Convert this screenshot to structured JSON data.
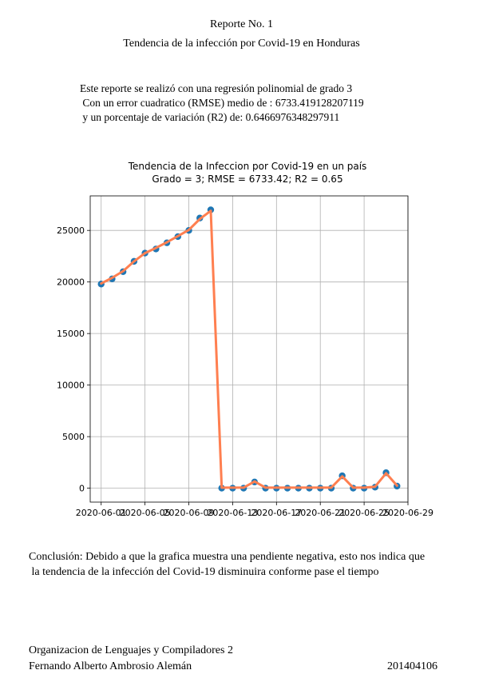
{
  "report": {
    "title": "Reporte No. 1",
    "subtitle": "Tendencia de la infección por Covid-19 en Honduras",
    "summary_lines": [
      "Este reporte se realizó con una regresión polinomial de grado 3",
      " Con un error cuadratico (RMSE) medio de : 6733.419128207119",
      " y un porcentaje de variación (R2) de: 0.6466976348297911"
    ],
    "conclusion_lines": [
      "Conclusión: Debido a que la grafica muestra una pendiente negativa, esto nos indica que",
      " la tendencia de la infección del Covid-19 disminuira conforme pase el tiempo"
    ],
    "footer": {
      "course": "Organizacion de Lenguajes y Compiladores 2",
      "author": "Fernando Alberto Ambrosio Alemán",
      "carnet": "201404106"
    }
  },
  "chart_data": {
    "type": "line",
    "title": "Tendencia de la Infeccion por Covid-19 en un país",
    "subtitle": "Grado = 3; RMSE = 6733.42; R2 = 0.65",
    "xlabel": "",
    "ylabel": "",
    "x_ticks": [
      "2020-06-01",
      "2020-06-05",
      "2020-06-09",
      "2020-06-13",
      "2020-06-17",
      "2020-06-21",
      "2020-06-25",
      "2020-06-29"
    ],
    "x_range": [
      "2020-05-31",
      "2020-06-29"
    ],
    "y_ticks": [
      0,
      5000,
      10000,
      15000,
      20000,
      25000
    ],
    "ylim": [
      -1350,
      28350
    ],
    "grid": true,
    "colors": {
      "points": "#1f77b4",
      "fit": "#ff7f50"
    },
    "series": [
      {
        "kind": "points",
        "x": [
          "2020-06-01",
          "2020-06-02",
          "2020-06-03",
          "2020-06-04",
          "2020-06-05",
          "2020-06-06",
          "2020-06-07",
          "2020-06-08",
          "2020-06-09",
          "2020-06-10",
          "2020-06-11",
          "2020-06-12",
          "2020-06-13",
          "2020-06-14",
          "2020-06-15",
          "2020-06-16",
          "2020-06-17",
          "2020-06-18",
          "2020-06-19",
          "2020-06-20",
          "2020-06-21",
          "2020-06-22",
          "2020-06-23",
          "2020-06-24",
          "2020-06-25",
          "2020-06-26",
          "2020-06-27",
          "2020-06-28"
        ],
        "y": [
          19800,
          20300,
          21000,
          22000,
          22800,
          23200,
          23800,
          24400,
          25000,
          26200,
          27000,
          0,
          0,
          0,
          600,
          0,
          0,
          0,
          0,
          0,
          0,
          0,
          1200,
          0,
          0,
          100,
          1500,
          200
        ]
      },
      {
        "kind": "line",
        "x": [
          "2020-06-01",
          "2020-06-02",
          "2020-06-03",
          "2020-06-04",
          "2020-06-05",
          "2020-06-06",
          "2020-06-07",
          "2020-06-08",
          "2020-06-09",
          "2020-06-10",
          "2020-06-11",
          "2020-06-12",
          "2020-06-13",
          "2020-06-14",
          "2020-06-15",
          "2020-06-16",
          "2020-06-17",
          "2020-06-18",
          "2020-06-19",
          "2020-06-20",
          "2020-06-21",
          "2020-06-22",
          "2020-06-23",
          "2020-06-24",
          "2020-06-25",
          "2020-06-26",
          "2020-06-27",
          "2020-06-28"
        ],
        "y": [
          19850,
          20400,
          21050,
          22000,
          22800,
          23300,
          23850,
          24450,
          25050,
          26100,
          26900,
          50,
          50,
          50,
          650,
          50,
          50,
          50,
          50,
          50,
          50,
          50,
          1150,
          50,
          50,
          150,
          1450,
          250
        ]
      }
    ]
  }
}
